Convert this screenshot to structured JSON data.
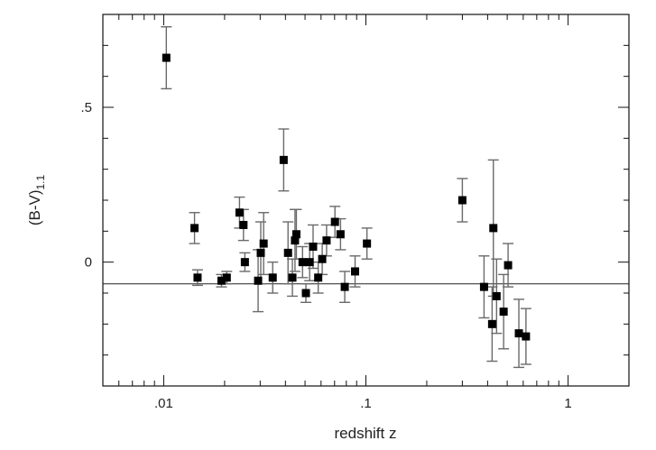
{
  "chart_data": {
    "type": "scatter",
    "title": "",
    "xlabel": "redshift z",
    "ylabel_main": "(B-V)",
    "ylabel_sub": "1.1",
    "xscale": "log",
    "xlim": [
      0.005,
      2.0
    ],
    "ylim": [
      -0.4,
      0.8
    ],
    "xticks": [
      {
        "value": 0.01,
        "label": ".01"
      },
      {
        "value": 0.1,
        "label": ".1"
      },
      {
        "value": 1,
        "label": "1"
      }
    ],
    "yticks": [
      {
        "value": 0,
        "label": "0"
      },
      {
        "value": 0.5,
        "label": ".5"
      }
    ],
    "reference_line_y": -0.07,
    "grid": false,
    "legend": "none",
    "marker_color": "#000000",
    "errorbar_color": "#6a6a6a",
    "points": [
      {
        "x": 0.0103,
        "y": 0.66,
        "err": 0.1
      },
      {
        "x": 0.0142,
        "y": 0.11,
        "err": 0.05
      },
      {
        "x": 0.0147,
        "y": -0.05,
        "err": 0.025
      },
      {
        "x": 0.0193,
        "y": -0.06,
        "err": 0.02
      },
      {
        "x": 0.0205,
        "y": -0.05,
        "err": 0.02
      },
      {
        "x": 0.0237,
        "y": 0.16,
        "err": 0.05
      },
      {
        "x": 0.0248,
        "y": 0.12,
        "err": 0.05
      },
      {
        "x": 0.0252,
        "y": 0.0,
        "err": 0.03
      },
      {
        "x": 0.0293,
        "y": -0.06,
        "err": 0.1
      },
      {
        "x": 0.0302,
        "y": 0.03,
        "err": 0.1
      },
      {
        "x": 0.0312,
        "y": 0.06,
        "err": 0.1
      },
      {
        "x": 0.0346,
        "y": -0.05,
        "err": 0.05
      },
      {
        "x": 0.0392,
        "y": 0.33,
        "err": 0.1
      },
      {
        "x": 0.0412,
        "y": 0.03,
        "err": 0.1
      },
      {
        "x": 0.0433,
        "y": -0.05,
        "err": 0.06
      },
      {
        "x": 0.0446,
        "y": 0.07,
        "err": 0.1
      },
      {
        "x": 0.0453,
        "y": 0.09,
        "err": 0.08
      },
      {
        "x": 0.0486,
        "y": 0.0,
        "err": 0.05
      },
      {
        "x": 0.0505,
        "y": -0.1,
        "err": 0.03
      },
      {
        "x": 0.0527,
        "y": 0.0,
        "err": 0.06
      },
      {
        "x": 0.0548,
        "y": 0.05,
        "err": 0.07
      },
      {
        "x": 0.0581,
        "y": -0.05,
        "err": 0.05
      },
      {
        "x": 0.0608,
        "y": 0.01,
        "err": 0.05
      },
      {
        "x": 0.0639,
        "y": 0.07,
        "err": 0.05
      },
      {
        "x": 0.0703,
        "y": 0.13,
        "err": 0.05
      },
      {
        "x": 0.0749,
        "y": 0.09,
        "err": 0.05
      },
      {
        "x": 0.0786,
        "y": -0.08,
        "err": 0.05
      },
      {
        "x": 0.0884,
        "y": -0.03,
        "err": 0.05
      },
      {
        "x": 0.1012,
        "y": 0.06,
        "err": 0.05
      },
      {
        "x": 0.3,
        "y": 0.2,
        "err": 0.07
      },
      {
        "x": 0.384,
        "y": -0.08,
        "err": 0.1
      },
      {
        "x": 0.421,
        "y": -0.2,
        "err": 0.12
      },
      {
        "x": 0.427,
        "y": 0.11,
        "err": 0.22
      },
      {
        "x": 0.443,
        "y": -0.11,
        "err": 0.12
      },
      {
        "x": 0.48,
        "y": -0.16,
        "err": 0.12
      },
      {
        "x": 0.505,
        "y": -0.01,
        "err": 0.07
      },
      {
        "x": 0.571,
        "y": -0.23,
        "err": 0.11
      },
      {
        "x": 0.619,
        "y": -0.24,
        "err": 0.09
      }
    ]
  }
}
